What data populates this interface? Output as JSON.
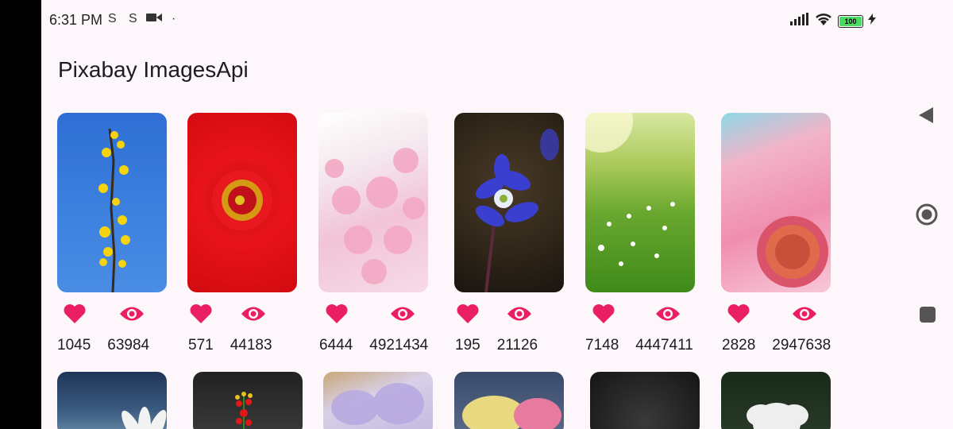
{
  "status_bar": {
    "time": "6:31 PM",
    "battery": "100",
    "icons": [
      "sync-icon",
      "sync-icon",
      "video-camera-icon",
      "dot-icon",
      "signal-icon",
      "wifi-icon",
      "battery-icon",
      "charging-icon"
    ]
  },
  "app_title": "Pixabay ImagesApi",
  "accent_color": "#e91e63",
  "cards": [
    {
      "likes": "1045",
      "views": "63984"
    },
    {
      "likes": "571",
      "views": "44183"
    },
    {
      "likes": "6444",
      "views": "4921434"
    },
    {
      "likes": "195",
      "views": "21126"
    },
    {
      "likes": "7148",
      "views": "4447411"
    },
    {
      "likes": "2828",
      "views": "2947638"
    }
  ],
  "nav_buttons": [
    "back-icon",
    "home-icon",
    "recents-icon"
  ]
}
